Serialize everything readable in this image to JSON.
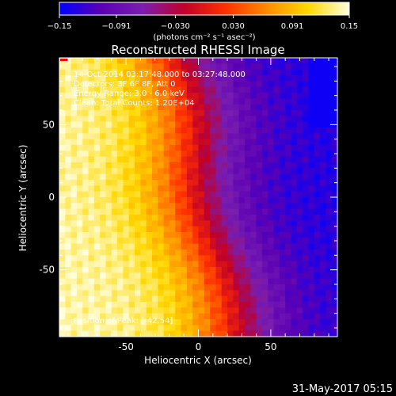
{
  "chart_data": {
    "type": "heatmap",
    "title": "Reconstructed RHESSI Image",
    "xlabel": "Heliocentric X (arcsec)",
    "ylabel": "Heliocentric Y (arcsec)",
    "xlim": [
      -96,
      96
    ],
    "ylim": [
      -96,
      96
    ],
    "x_ticks": [
      {
        "value": -50,
        "label": "-50"
      },
      {
        "value": 0,
        "label": "0"
      },
      {
        "value": 50,
        "label": "50"
      }
    ],
    "y_ticks": [
      {
        "value": 50,
        "label": "50"
      },
      {
        "value": 0,
        "label": "0"
      },
      {
        "value": -50,
        "label": "-50"
      }
    ],
    "colorbar": {
      "colormap": "bright-rainbow (blue-purple-red-orange-yellow-white)",
      "min": -0.15,
      "max": 0.15,
      "tick_labels": [
        "−0.15",
        "−0.091",
        "−0.030",
        "0.030",
        "0.091",
        "0.15"
      ],
      "tick_values": [
        -0.15,
        -0.091,
        -0.03,
        0.03,
        0.091,
        0.15
      ],
      "unit_label": "(photons cm⁻² s⁻¹ asec⁻²)"
    },
    "info_lines": [
      "14-Oct-2014 03:17:48.000 to 03:27:48.000",
      "Detectors: 3F 6F 8F, Att 0",
      "Energy Range: 3.0 - 6.0 keV",
      "Clean:    Total Counts: 1.20E+04"
    ],
    "position_label": "Position of Peak: [-42,54]",
    "colors": {
      "background": "#000000",
      "axis": "#ffffff",
      "cmap_stops": [
        "#0000ff",
        "#5a00b4",
        "#7a1eb0",
        "#c0002a",
        "#ff3000",
        "#ff8a00",
        "#ffd800",
        "#ffffe0"
      ]
    }
  },
  "footer": {
    "timestamp": "31-May-2017 05:15"
  }
}
